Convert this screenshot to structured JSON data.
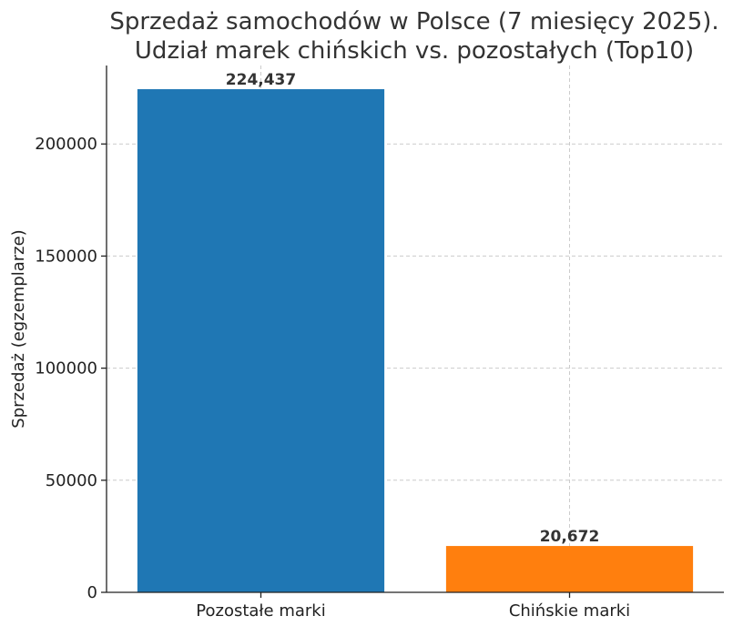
{
  "chart_data": {
    "type": "bar",
    "title_lines": [
      "Sprzedaż samochodów w Polsce (7 miesięcy 2025).",
      "Udział marek chińskich vs. pozostałych (Top10)"
    ],
    "xlabel": "",
    "ylabel": "Sprzedaż (egzemplarze)",
    "categories": [
      "Pozostałe marki",
      "Chińskie marki"
    ],
    "values": [
      224437,
      20672
    ],
    "value_labels": [
      "224,437",
      "20,672"
    ],
    "colors": [
      "#1f77b4",
      "#ff7f0e"
    ],
    "ylim": [
      0,
      235000
    ],
    "yticks": [
      0,
      50000,
      100000,
      150000,
      200000
    ],
    "grid": true
  }
}
